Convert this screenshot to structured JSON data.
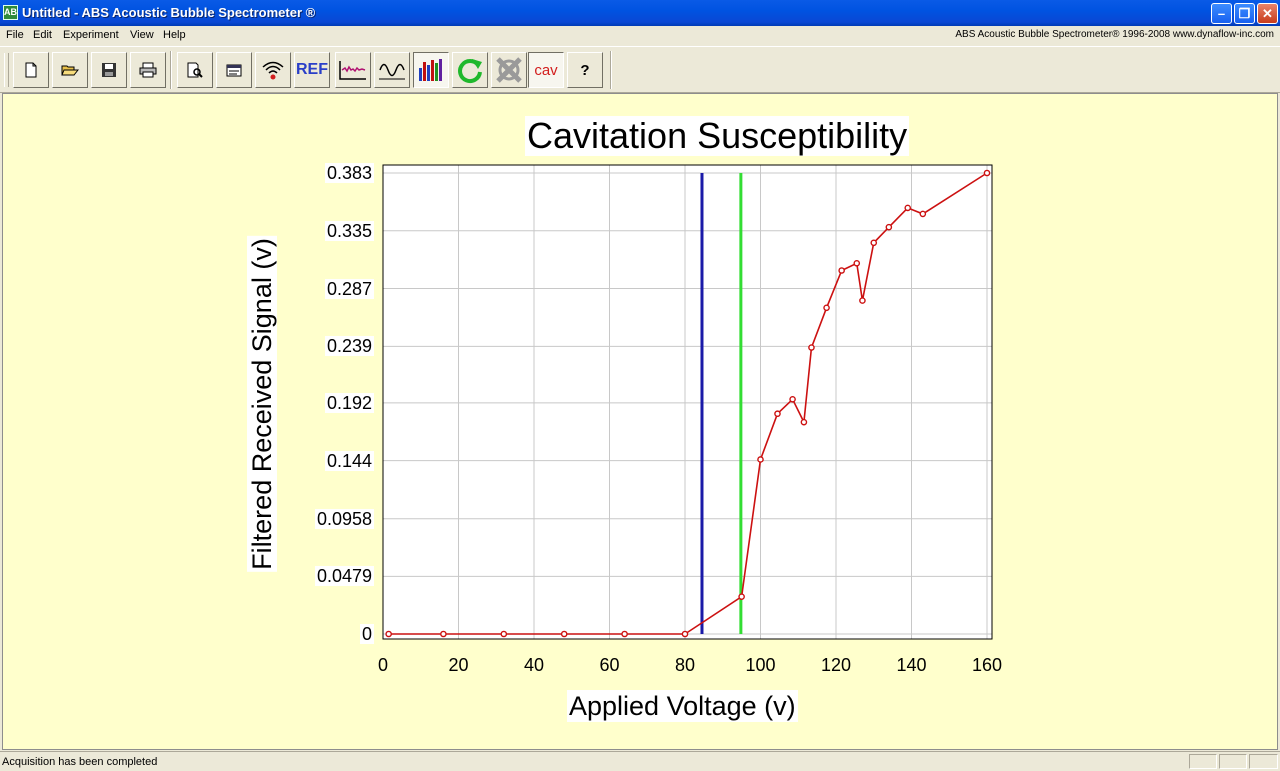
{
  "window": {
    "title": "Untitled - ABS Acoustic Bubble Spectrometer ®",
    "app_icon_text": "AB",
    "minimize_glyph": "–",
    "maximize_glyph": "❐",
    "close_glyph": "✕"
  },
  "menu": {
    "items": [
      "File",
      "Edit",
      "Experiment",
      "View",
      "Help"
    ],
    "right_text": "ABS Acoustic Bubble Spectrometer®  1996-2008 www.dynaflow-inc.com"
  },
  "toolbar": {
    "buttons": [
      {
        "icon": "new-file-icon"
      },
      {
        "icon": "open-folder-icon"
      },
      {
        "icon": "save-disk-icon"
      },
      {
        "icon": "printer-icon"
      },
      {
        "icon": "print-preview-icon"
      },
      {
        "icon": "properties-icon"
      },
      {
        "icon": "signal-antenna-icon"
      },
      {
        "icon": "ref-text-icon",
        "label": "REF"
      },
      {
        "icon": "waveform-icon"
      },
      {
        "icon": "sine-wave-icon"
      },
      {
        "icon": "bar-chart-icon"
      },
      {
        "icon": "refresh-icon"
      },
      {
        "icon": "disabled-x-icon"
      },
      {
        "icon": "cav-text-icon",
        "label": "cav"
      },
      {
        "icon": "help-icon",
        "label": "?"
      }
    ],
    "colors": {
      "ref": "#2a3fc8",
      "cav": "#d21e1e",
      "refresh": "#1fb82c"
    }
  },
  "status": {
    "text": "Acquisition has been completed"
  },
  "chart_data": {
    "type": "line",
    "title": "Cavitation Susceptibility",
    "xlabel": "Applied Voltage (v)",
    "ylabel": "Filtered Received Signal (v)",
    "xlim": [
      0,
      160
    ],
    "ylim": [
      0,
      0.383
    ],
    "x_ticks": [
      "0",
      "20",
      "40",
      "60",
      "80",
      "100",
      "120",
      "140",
      "160"
    ],
    "x_tick_values": [
      0,
      20,
      40,
      60,
      80,
      100,
      120,
      140,
      160
    ],
    "y_ticks": [
      "0",
      "0.0479",
      "0.0958",
      "0.144",
      "0.192",
      "0.239",
      "0.287",
      "0.335",
      "0.383"
    ],
    "y_tick_values": [
      0,
      0.0479,
      0.0958,
      0.144,
      0.192,
      0.239,
      0.287,
      0.335,
      0.383
    ],
    "grid": true,
    "series": [
      {
        "color": "#cc1111",
        "x": [
          1.5,
          16,
          32,
          48,
          64,
          80,
          95,
          100,
          104.5,
          108.5,
          111.5,
          113.5,
          117.5,
          121.5,
          125.5,
          127,
          130,
          134,
          139,
          143,
          160
        ],
        "y": [
          0,
          0,
          0,
          0,
          0,
          0,
          0.031,
          0.145,
          0.183,
          0.195,
          0.176,
          0.238,
          0.271,
          0.302,
          0.308,
          0.277,
          0.325,
          0.338,
          0.354,
          0.349,
          0.383
        ]
      }
    ],
    "markers": [
      {
        "x": 84.5,
        "color": "#1a1aa8"
      },
      {
        "x": 94.8,
        "color": "#33dd33"
      }
    ]
  }
}
